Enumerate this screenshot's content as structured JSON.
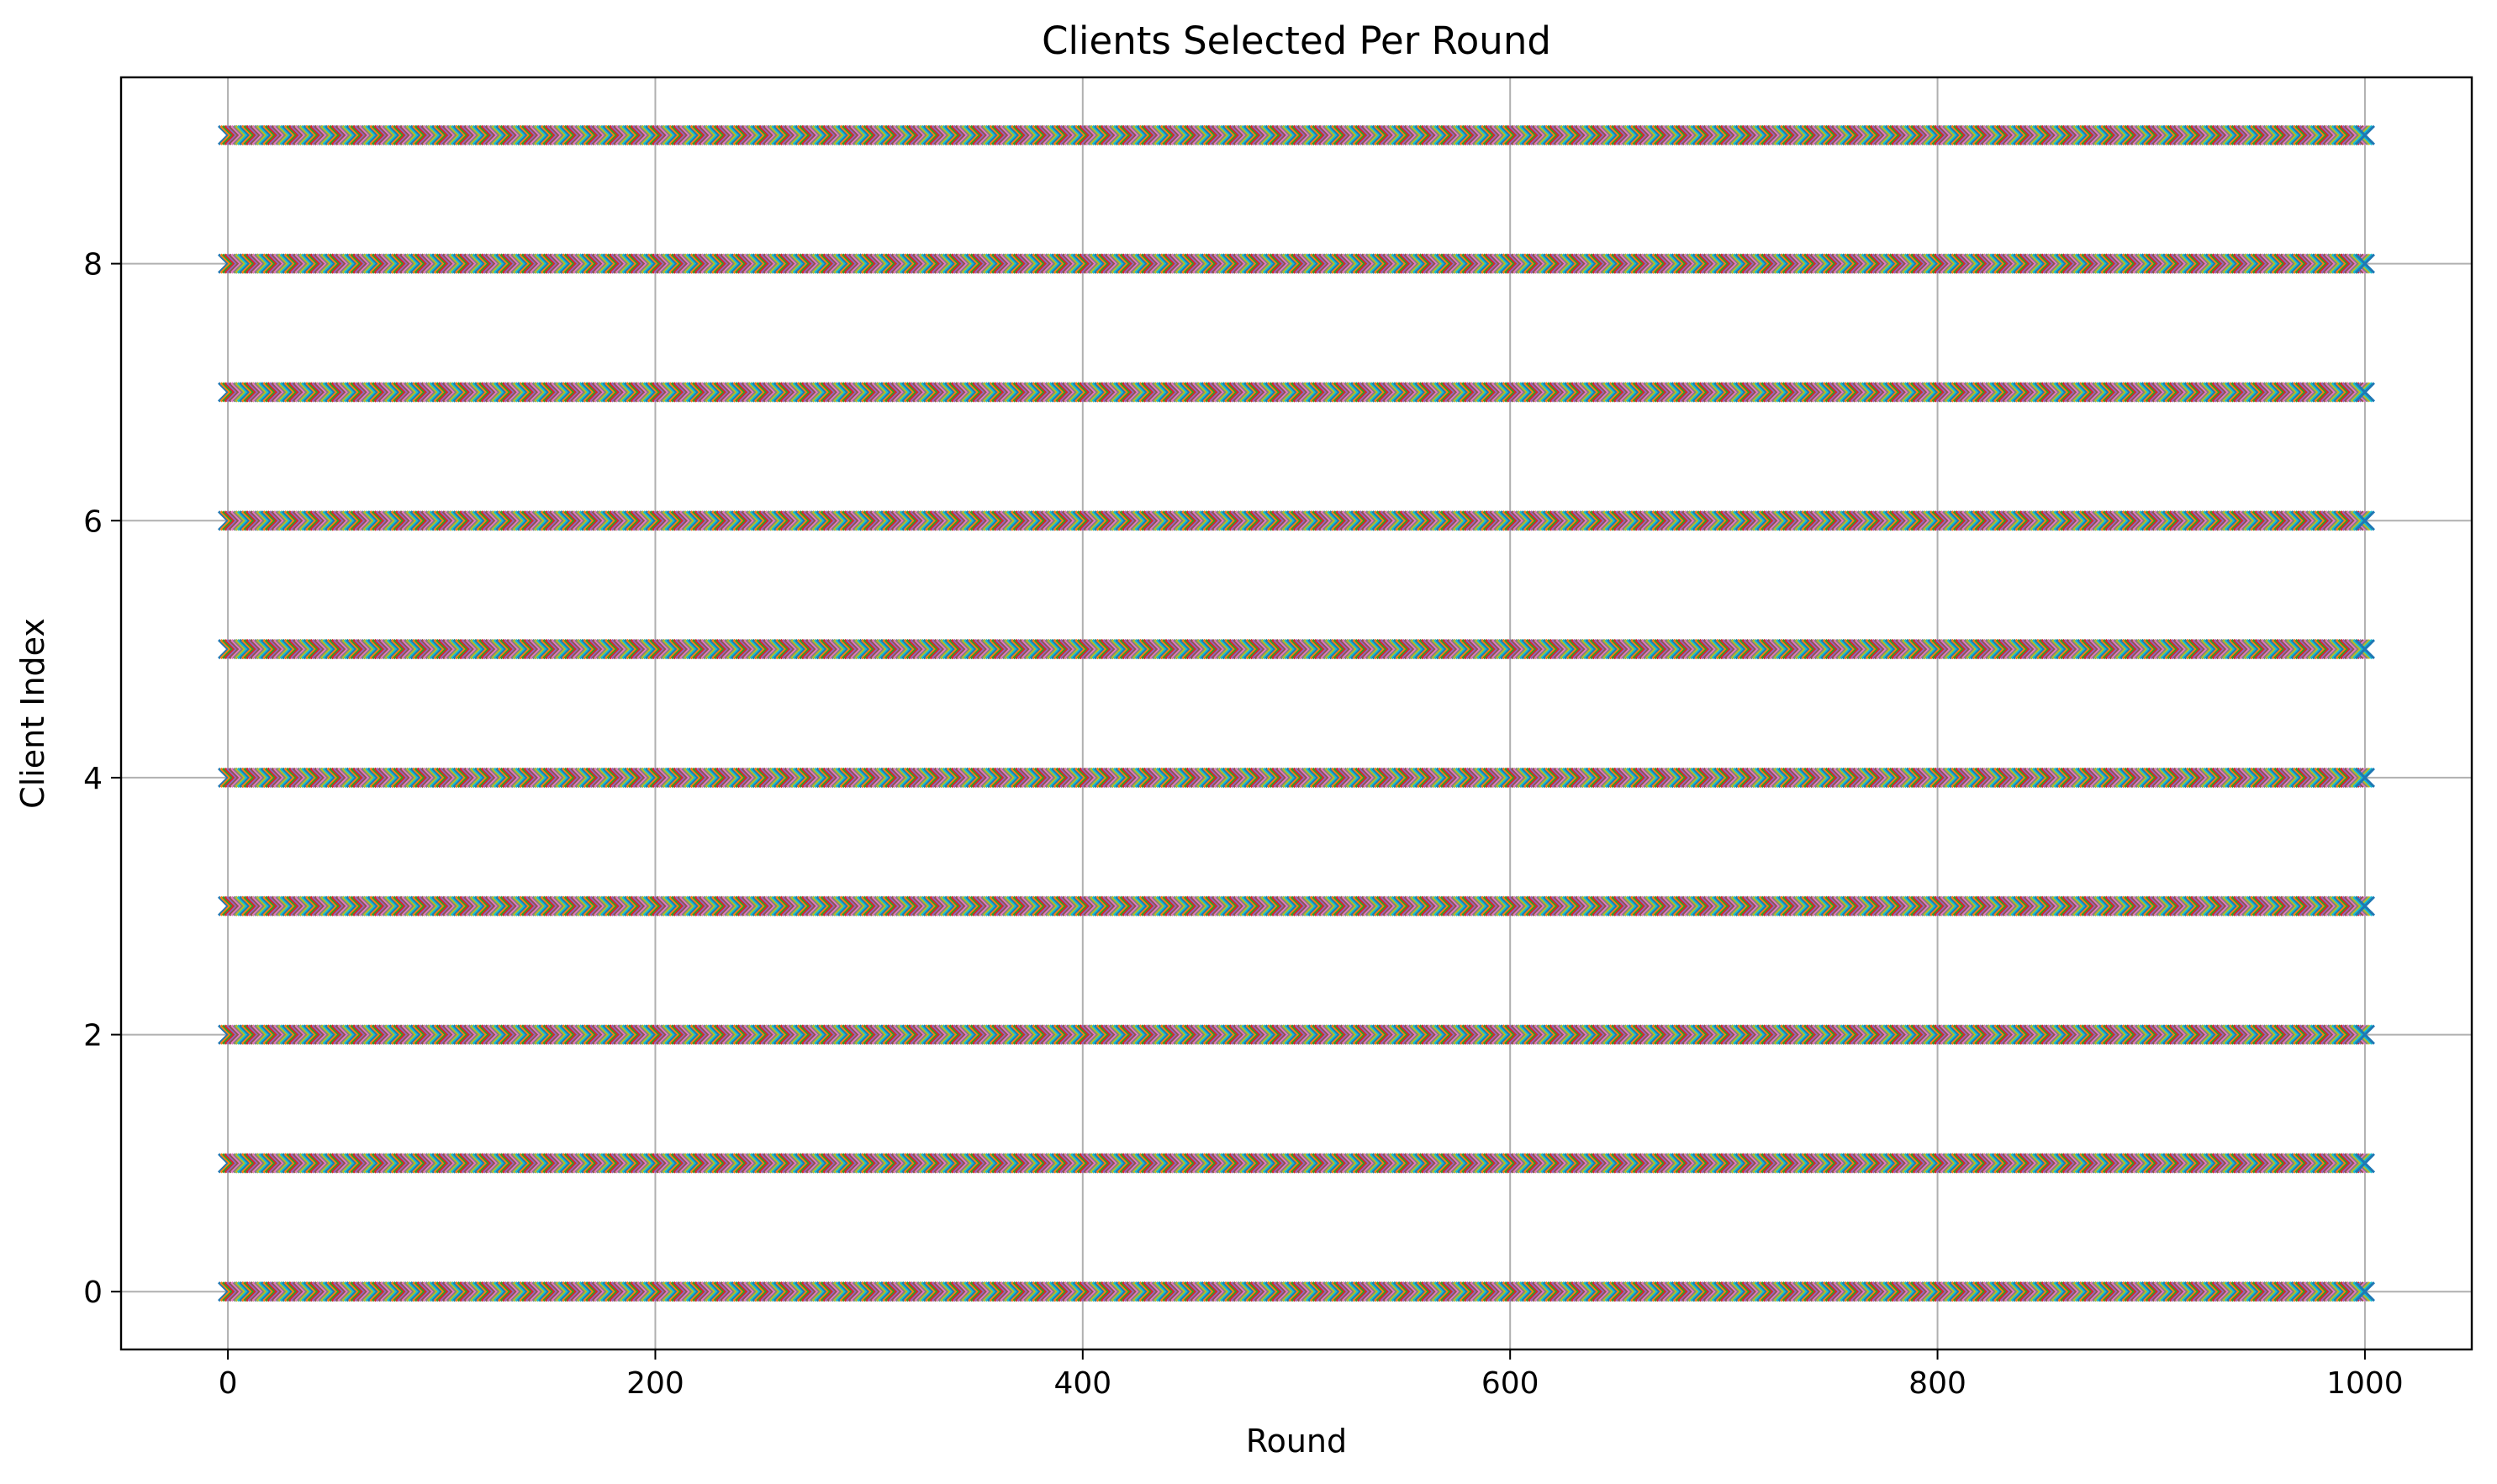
{
  "chart_data": {
    "type": "scatter",
    "title": "Clients Selected Per Round",
    "xlabel": "Round",
    "ylabel": "Client Index",
    "xlim": [
      -50,
      1050
    ],
    "ylim": [
      -0.45,
      9.45
    ],
    "x_ticks": [
      0,
      200,
      400,
      600,
      800,
      1000
    ],
    "y_ticks": [
      0,
      2,
      4,
      6,
      8
    ],
    "grid": true,
    "marker": "x",
    "rounds": [
      0,
      1000
    ],
    "client_indices": [
      0,
      1,
      2,
      3,
      4,
      5,
      6,
      7,
      8,
      9
    ],
    "clients_per_round": 10,
    "palette": [
      "#1f77b4",
      "#ff7f0e",
      "#2ca02c",
      "#d62728",
      "#9467bd",
      "#8c564b",
      "#e377c2",
      "#7f7f7f",
      "#bcbd22",
      "#17becf"
    ],
    "description_of_series": "One series per round; each round selects all client indices 0-9, plotted as x markers in the default color cycle"
  }
}
